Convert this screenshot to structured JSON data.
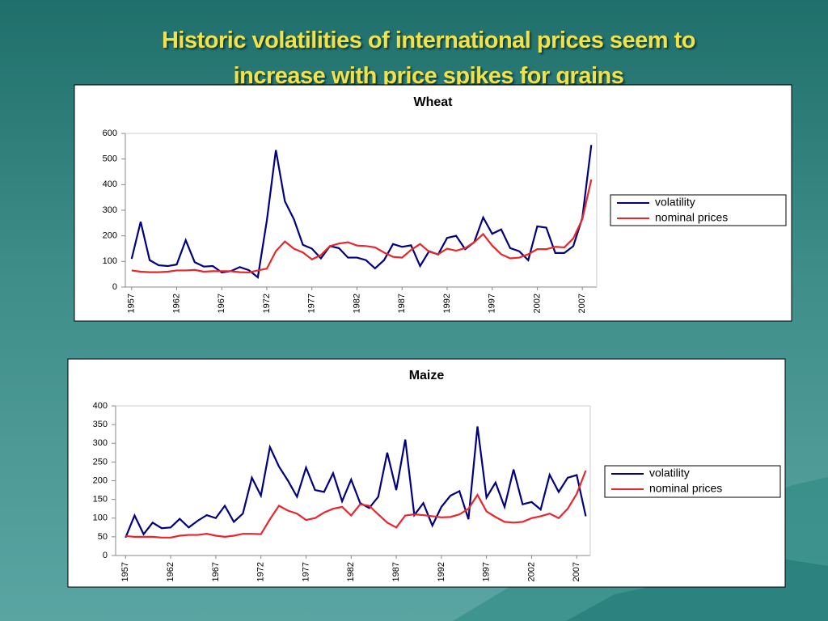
{
  "slide_title": [
    "Historic volatilities of international prices seem to",
    "increase with price spikes for grains"
  ],
  "chart_data": [
    {
      "type": "line",
      "title": "Wheat",
      "x": [
        1957,
        1958,
        1959,
        1960,
        1961,
        1962,
        1963,
        1964,
        1965,
        1966,
        1967,
        1968,
        1969,
        1970,
        1971,
        1972,
        1973,
        1974,
        1975,
        1976,
        1977,
        1978,
        1979,
        1980,
        1981,
        1982,
        1983,
        1984,
        1985,
        1986,
        1987,
        1988,
        1989,
        1990,
        1991,
        1992,
        1993,
        1994,
        1995,
        1996,
        1997,
        1998,
        1999,
        2000,
        2001,
        2002,
        2003,
        2004,
        2005,
        2006,
        2007,
        2008
      ],
      "series": [
        {
          "name": "volatility",
          "color": "#000080",
          "values": [
            110,
            255,
            105,
            85,
            82,
            88,
            183,
            97,
            80,
            82,
            57,
            62,
            78,
            66,
            38,
            260,
            535,
            335,
            265,
            165,
            150,
            112,
            160,
            152,
            115,
            115,
            105,
            73,
            105,
            168,
            157,
            163,
            82,
            140,
            127,
            192,
            200,
            148,
            175,
            272,
            208,
            225,
            152,
            140,
            105,
            237,
            232,
            133,
            133,
            160,
            270,
            555
          ]
        },
        {
          "name": "nominal prices",
          "color": "#e8262b",
          "values": [
            65,
            60,
            58,
            58,
            60,
            65,
            65,
            67,
            60,
            62,
            62,
            62,
            58,
            57,
            65,
            72,
            140,
            178,
            150,
            135,
            108,
            125,
            160,
            170,
            175,
            162,
            160,
            155,
            135,
            118,
            115,
            145,
            168,
            138,
            128,
            150,
            142,
            152,
            175,
            207,
            162,
            128,
            112,
            115,
            128,
            148,
            148,
            157,
            155,
            190,
            265,
            420
          ]
        }
      ],
      "xlim": [
        1956.3,
        2008.6
      ],
      "xticks": [
        1957,
        1962,
        1967,
        1972,
        1977,
        1982,
        1987,
        1992,
        1997,
        2002,
        2007
      ],
      "ylim": [
        0,
        600
      ],
      "yticks": [
        0,
        100,
        200,
        300,
        400,
        500,
        600
      ],
      "grid": false,
      "legend": "right"
    },
    {
      "type": "line",
      "title": "Maize",
      "x": [
        1957,
        1958,
        1959,
        1960,
        1961,
        1962,
        1963,
        1964,
        1965,
        1966,
        1967,
        1968,
        1969,
        1970,
        1971,
        1972,
        1973,
        1974,
        1975,
        1976,
        1977,
        1978,
        1979,
        1980,
        1981,
        1982,
        1983,
        1984,
        1985,
        1986,
        1987,
        1988,
        1989,
        1990,
        1991,
        1992,
        1993,
        1994,
        1995,
        1996,
        1997,
        1998,
        1999,
        2000,
        2001,
        2002,
        2003,
        2004,
        2005,
        2006,
        2007,
        2008
      ],
      "series": [
        {
          "name": "volatility",
          "color": "#000080",
          "values": [
            48,
            107,
            57,
            88,
            73,
            75,
            98,
            75,
            93,
            108,
            100,
            133,
            90,
            112,
            208,
            160,
            290,
            238,
            200,
            157,
            235,
            175,
            170,
            220,
            145,
            203,
            140,
            127,
            157,
            275,
            175,
            310,
            108,
            140,
            80,
            130,
            160,
            172,
            97,
            345,
            155,
            195,
            130,
            230,
            137,
            143,
            123,
            216,
            170,
            208,
            215,
            105
          ]
        },
        {
          "name": "nominal prices",
          "color": "#e8262b",
          "values": [
            52,
            50,
            50,
            50,
            48,
            48,
            53,
            55,
            55,
            58,
            53,
            50,
            53,
            58,
            58,
            57,
            97,
            133,
            120,
            112,
            95,
            100,
            115,
            125,
            130,
            107,
            137,
            133,
            110,
            88,
            75,
            107,
            110,
            108,
            105,
            102,
            103,
            110,
            125,
            162,
            118,
            103,
            90,
            88,
            90,
            100,
            105,
            112,
            100,
            125,
            165,
            227
          ]
        }
      ],
      "xlim": [
        1955.9,
        2008.5
      ],
      "xticks": [
        1957,
        1962,
        1967,
        1972,
        1977,
        1982,
        1987,
        1992,
        1997,
        2002,
        2007
      ],
      "ylim": [
        0,
        400
      ],
      "yticks": [
        0,
        50,
        100,
        150,
        200,
        250,
        300,
        350,
        400
      ],
      "grid": false,
      "legend": "right"
    }
  ]
}
